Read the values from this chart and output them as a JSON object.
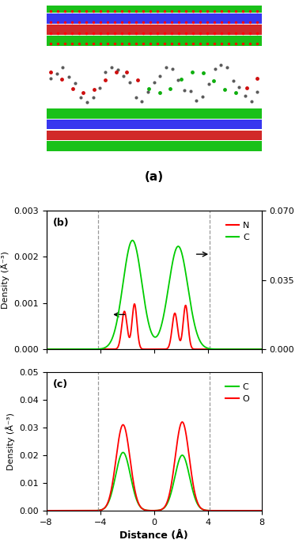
{
  "fig_width": 3.78,
  "fig_height": 7.01,
  "dpi": 100,
  "panel_b": {
    "label": "(b)",
    "xlim": [
      -8,
      8
    ],
    "ylim_left": [
      0,
      0.003
    ],
    "ylim_right": [
      0,
      0.07
    ],
    "yticks_left": [
      0.0,
      0.001,
      0.002,
      0.003
    ],
    "yticks_right": [
      0.0,
      0.035,
      0.07
    ],
    "ylabel_left": "Density (Å⁻³)",
    "dashed_lines": [
      -4.13,
      4.13
    ],
    "N_color": "#ff0000",
    "C_color": "#00cc00"
  },
  "panel_c": {
    "label": "(c)",
    "xlim": [
      -8,
      8
    ],
    "ylim": [
      0,
      0.05
    ],
    "yticks": [
      0.0,
      0.01,
      0.02,
      0.03,
      0.04,
      0.05
    ],
    "ylabel": "Density (Å⁻³)",
    "xlabel": "Distance (Å)",
    "dashed_lines": [
      -4.13,
      4.13
    ],
    "C_color": "#00cc00",
    "O_color": "#ff0000"
  },
  "panel_a_label": "(a)"
}
